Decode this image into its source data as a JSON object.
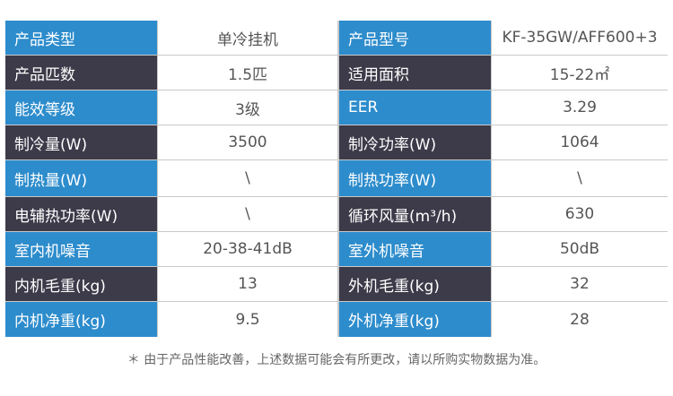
{
  "spec_table": {
    "rows": [
      {
        "left_label": "产品类型",
        "left_value": "单冷挂机",
        "right_label": "产品型号",
        "right_value": "KF-35GW/AFF600+3",
        "color": "blue"
      },
      {
        "left_label": "产品匹数",
        "left_value": "1.5匹",
        "right_label": "适用面积",
        "right_value": "15-22㎡",
        "color": "dark"
      },
      {
        "left_label": "能效等级",
        "left_value": "3级",
        "right_label": "EER",
        "right_value": "3.29",
        "color": "blue"
      },
      {
        "left_label": "制冷量(W)",
        "left_value": "3500",
        "right_label": "制冷功率(W)",
        "right_value": "1064",
        "color": "dark"
      },
      {
        "left_label": "制热量(W)",
        "left_value": "\\",
        "right_label": "制热功率(W)",
        "right_value": "\\",
        "color": "blue"
      },
      {
        "left_label": "电辅热功率(W)",
        "left_value": "\\",
        "right_label": "循环风量(m³/h)",
        "right_value": "630",
        "color": "dark"
      },
      {
        "left_label": "室内机噪音",
        "left_value": "20-38-41dB",
        "right_label": "室外机噪音",
        "right_value": "50dB",
        "color": "blue"
      },
      {
        "left_label": "内机毛重(kg)",
        "left_value": "13",
        "right_label": "外机毛重(kg)",
        "right_value": "32",
        "color": "dark"
      },
      {
        "left_label": "内机净重(kg)",
        "left_value": "9.5",
        "right_label": "外机净重(kg)",
        "right_value": "28",
        "color": "blue"
      }
    ]
  },
  "footnote": "＊ 由于产品性能改善，上述数据可能会有所更改，请以所购实物数据为准。",
  "colors": {
    "label_blue": "#2d8ccc",
    "label_dark": "#3d3a49",
    "grid": "#c9c9c9",
    "value_text": "#555555"
  }
}
